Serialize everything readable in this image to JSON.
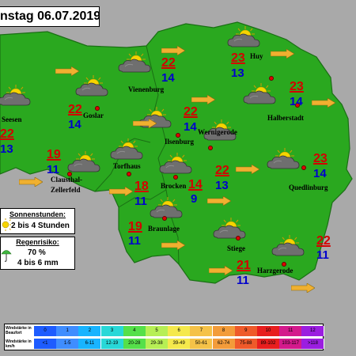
{
  "title": "nstag 06.07.2019",
  "colors": {
    "land": "#2aa81f",
    "land_border": "#1a6f14",
    "background": "#a9a9a9",
    "max_temp": "#d40000",
    "min_temp": "#0000cc",
    "arrow": "#f0b030"
  },
  "cities": [
    {
      "name": "Seesen",
      "tmax": "22",
      "tmin": "13",
      "weather": "partly-cloudy-icon"
    },
    {
      "name": "Goslar",
      "tmax": "22",
      "tmin": "14",
      "weather": "partly-cloudy-icon"
    },
    {
      "name": "Vienenburg",
      "tmax": "22",
      "tmin": "14",
      "weather": "partly-cloudy-icon"
    },
    {
      "name": "Huy",
      "tmax": "23",
      "tmin": "13",
      "weather": "partly-cloudy-icon"
    },
    {
      "name": "Halberstadt",
      "tmax": "23",
      "tmin": "14",
      "weather": "partly-cloudy-icon"
    },
    {
      "name": "Ilsenburg",
      "tmax": "22",
      "tmin": "14",
      "weather": "partly-cloudy-icon"
    },
    {
      "name": "Wernigerode",
      "tmax": "",
      "tmin": "",
      "weather": "partly-cloudy-icon"
    },
    {
      "name": "Clausthal-",
      "tmax": "19",
      "tmin": "11",
      "weather": "partly-cloudy-icon"
    },
    {
      "name": "Zellerfeld",
      "tmax": "",
      "tmin": "",
      "weather": ""
    },
    {
      "name": "Torfhaus",
      "tmax": "18",
      "tmin": "11",
      "weather": "partly-cloudy-icon"
    },
    {
      "name": "Brocken",
      "tmax": "14",
      "tmin": "9",
      "weather": "partly-cloudy-icon"
    },
    {
      "name": "Quedlinburg",
      "tmax": "23",
      "tmin": "14",
      "weather": "partly-cloudy-icon"
    },
    {
      "name": "Braunlage",
      "tmax": "19",
      "tmin": "11",
      "weather": "partly-cloudy-icon"
    },
    {
      "name": "Stiege",
      "tmax": "21",
      "tmin": "11",
      "weather": "partly-cloudy-icon"
    },
    {
      "name": "Harzgerode",
      "tmax": "22",
      "tmin": "11",
      "weather": "partly-cloudy-icon"
    },
    {
      "name": "",
      "tmax": "22",
      "tmin": "13",
      "weather": "partly-cloudy-icon"
    }
  ],
  "sunshine": {
    "title": "Sonnenstunden:",
    "value": "2 bis 4 Stunden",
    "icon": "sun-icon"
  },
  "rain": {
    "title": "Regenrisiko:",
    "percent": "70 %",
    "amount": "4 bis 6 mm",
    "icon": "umbrella-icon"
  },
  "wind": {
    "beaufort_label": "Windstärke in Beaufort",
    "kmh_label": "Windstärke in km/h",
    "beaufort": [
      "0",
      "1",
      "2",
      "3",
      "4",
      "5",
      "6",
      "7",
      "8",
      "9",
      "10",
      "11",
      "12"
    ],
    "kmh": [
      "<1",
      "1-5",
      "6-11",
      "12-19",
      "20-28",
      "29-38",
      "39-49",
      "50-61",
      "62-74",
      "75-88",
      "89-102",
      "103-117",
      ">118"
    ],
    "colors": [
      "#1e5cff",
      "#3f8dff",
      "#19b4ff",
      "#28d8d8",
      "#55e04a",
      "#b7ef55",
      "#f5e94c",
      "#f5c248",
      "#f39c3a",
      "#ef5a2a",
      "#e81e1e",
      "#d41a8c",
      "#9b1ee0"
    ]
  }
}
